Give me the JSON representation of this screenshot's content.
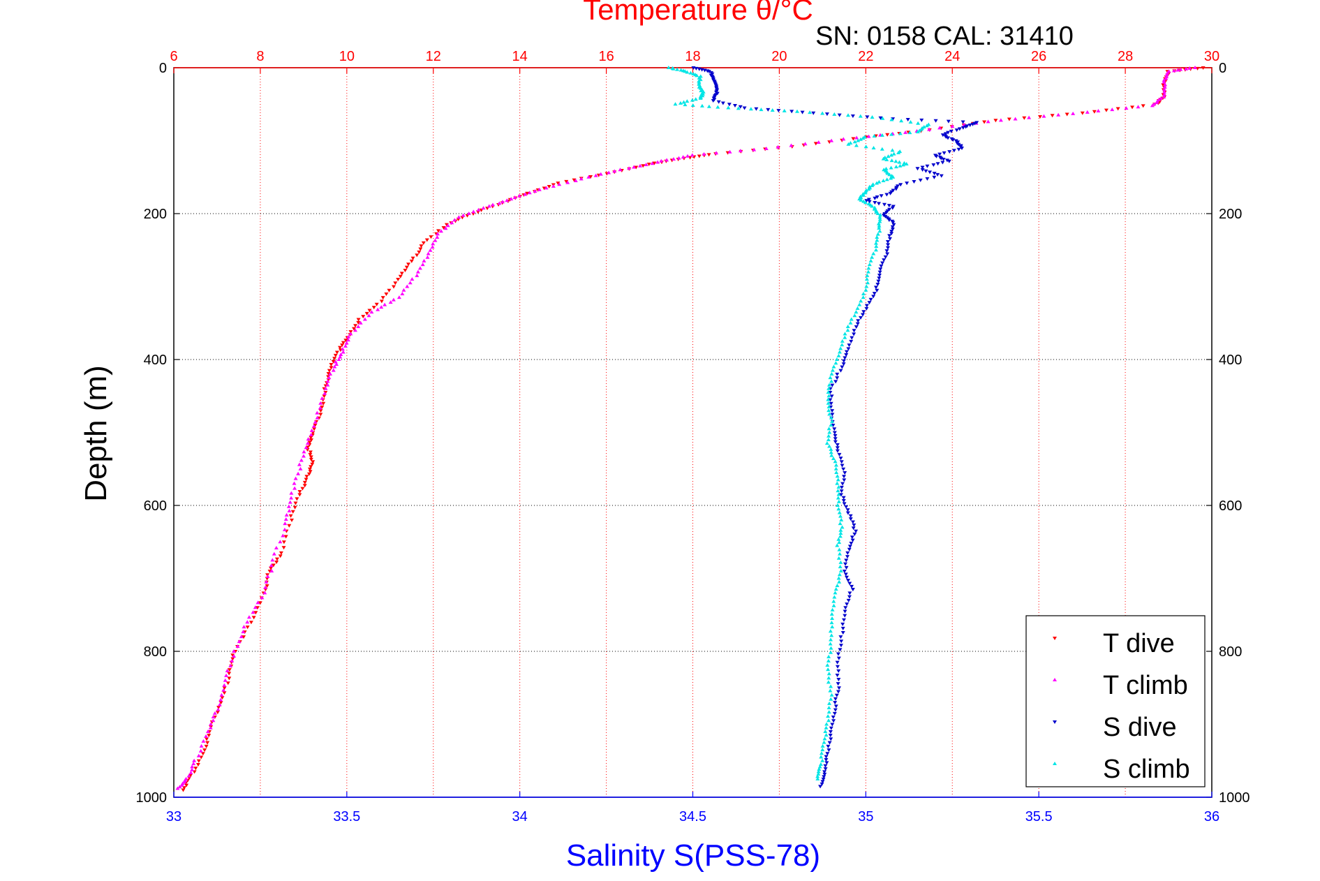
{
  "chart_data": {
    "type": "scatter",
    "title": "Temperature θ/°C",
    "subtitle": "SN: 0158  CAL: 31410",
    "ylabel": "Depth (m)",
    "xlabel_bottom": "Salinity S(PSS-78)",
    "xlabel_top": "Temperature θ/°C",
    "y_ticks": [
      "0",
      "200",
      "400",
      "600",
      "800",
      "1000"
    ],
    "y_range": [
      0,
      1000
    ],
    "y_reversed": true,
    "x_top_ticks": [
      "6",
      "8",
      "10",
      "12",
      "14",
      "16",
      "18",
      "20",
      "22",
      "24",
      "26",
      "28",
      "30"
    ],
    "x_top_range": [
      6,
      30
    ],
    "x_bottom_ticks": [
      "33",
      "33.5",
      "34",
      "34.5",
      "35",
      "35.5",
      "36"
    ],
    "x_bottom_range": [
      33,
      36
    ],
    "grid": true,
    "legend_position": "bottom-right",
    "colors": {
      "t_dive": "#ff0000",
      "t_climb": "#ff00ff",
      "s_dive": "#0000cc",
      "s_climb": "#00e5e5",
      "top_axis": "#ff0000",
      "bottom_axis": "#0000ff"
    },
    "series": [
      {
        "name": "T dive",
        "axis": "top",
        "marker": "triangle-down",
        "points": [
          [
            29.8,
            0
          ],
          [
            29.0,
            5
          ],
          [
            28.9,
            20
          ],
          [
            28.9,
            40
          ],
          [
            28.7,
            50
          ],
          [
            27.0,
            62
          ],
          [
            25.0,
            72
          ],
          [
            23.5,
            85
          ],
          [
            22.0,
            95
          ],
          [
            20.3,
            108
          ],
          [
            18.5,
            118
          ],
          [
            17.8,
            124
          ],
          [
            17.0,
            132
          ],
          [
            16.0,
            145
          ],
          [
            14.9,
            158
          ],
          [
            14.2,
            172
          ],
          [
            13.6,
            185
          ],
          [
            12.9,
            200
          ],
          [
            12.3,
            215
          ],
          [
            11.8,
            240
          ],
          [
            11.5,
            265
          ],
          [
            11.2,
            290
          ],
          [
            10.8,
            320
          ],
          [
            10.3,
            345
          ],
          [
            10.0,
            370
          ],
          [
            9.8,
            390
          ],
          [
            9.6,
            415
          ],
          [
            9.5,
            440
          ],
          [
            9.4,
            470
          ],
          [
            9.2,
            500
          ],
          [
            9.1,
            520
          ],
          [
            9.2,
            540
          ],
          [
            9.1,
            560
          ],
          [
            8.9,
            585
          ],
          [
            8.7,
            620
          ],
          [
            8.5,
            665
          ],
          [
            8.2,
            690
          ],
          [
            8.1,
            720
          ],
          [
            7.8,
            760
          ],
          [
            7.4,
            800
          ],
          [
            7.3,
            830
          ],
          [
            7.1,
            870
          ],
          [
            6.8,
            910
          ],
          [
            6.7,
            940
          ],
          [
            6.4,
            970
          ],
          [
            6.2,
            990
          ]
        ]
      },
      {
        "name": "T climb",
        "axis": "top",
        "marker": "triangle-up",
        "points": [
          [
            29.6,
            0
          ],
          [
            29.0,
            5
          ],
          [
            28.9,
            20
          ],
          [
            28.9,
            40
          ],
          [
            28.6,
            52
          ],
          [
            26.8,
            63
          ],
          [
            24.8,
            74
          ],
          [
            23.2,
            87
          ],
          [
            21.5,
            98
          ],
          [
            19.7,
            111
          ],
          [
            18.0,
            120
          ],
          [
            17.3,
            128
          ],
          [
            16.5,
            138
          ],
          [
            15.6,
            150
          ],
          [
            14.6,
            165
          ],
          [
            13.9,
            178
          ],
          [
            13.3,
            190
          ],
          [
            12.6,
            205
          ],
          [
            12.1,
            228
          ],
          [
            11.9,
            255
          ],
          [
            11.6,
            285
          ],
          [
            11.2,
            315
          ],
          [
            10.6,
            335
          ],
          [
            10.1,
            365
          ],
          [
            9.9,
            390
          ],
          [
            9.7,
            410
          ],
          [
            9.5,
            440
          ],
          [
            9.3,
            480
          ],
          [
            9.1,
            515
          ],
          [
            8.9,
            550
          ],
          [
            8.7,
            590
          ],
          [
            8.6,
            625
          ],
          [
            8.3,
            675
          ],
          [
            8.1,
            720
          ],
          [
            7.7,
            760
          ],
          [
            7.4,
            800
          ],
          [
            7.2,
            840
          ],
          [
            7.0,
            880
          ],
          [
            6.8,
            910
          ],
          [
            6.5,
            950
          ],
          [
            6.3,
            975
          ],
          [
            6.1,
            988
          ]
        ]
      },
      {
        "name": "S dive",
        "axis": "bottom",
        "marker": "triangle-down",
        "points": [
          [
            34.5,
            0
          ],
          [
            34.55,
            5
          ],
          [
            34.56,
            15
          ],
          [
            34.57,
            25
          ],
          [
            34.57,
            35
          ],
          [
            34.56,
            45
          ],
          [
            34.65,
            55
          ],
          [
            34.85,
            62
          ],
          [
            35.08,
            70
          ],
          [
            35.32,
            75
          ],
          [
            35.28,
            82
          ],
          [
            35.22,
            92
          ],
          [
            35.26,
            100
          ],
          [
            35.28,
            110
          ],
          [
            35.2,
            120
          ],
          [
            35.24,
            128
          ],
          [
            35.15,
            138
          ],
          [
            35.22,
            148
          ],
          [
            35.1,
            160
          ],
          [
            35.07,
            172
          ],
          [
            35.0,
            182
          ],
          [
            35.08,
            190
          ],
          [
            35.05,
            202
          ],
          [
            35.08,
            212
          ],
          [
            35.07,
            230
          ],
          [
            35.06,
            255
          ],
          [
            35.04,
            280
          ],
          [
            35.03,
            305
          ],
          [
            35.0,
            330
          ],
          [
            34.97,
            355
          ],
          [
            34.95,
            385
          ],
          [
            34.93,
            410
          ],
          [
            34.9,
            440
          ],
          [
            34.9,
            470
          ],
          [
            34.91,
            500
          ],
          [
            34.92,
            525
          ],
          [
            34.94,
            555
          ],
          [
            34.93,
            585
          ],
          [
            34.95,
            610
          ],
          [
            34.97,
            635
          ],
          [
            34.95,
            660
          ],
          [
            34.94,
            690
          ],
          [
            34.96,
            715
          ],
          [
            34.94,
            745
          ],
          [
            34.93,
            780
          ],
          [
            34.92,
            815
          ],
          [
            34.92,
            850
          ],
          [
            34.91,
            880
          ],
          [
            34.9,
            910
          ],
          [
            34.89,
            940
          ],
          [
            34.88,
            965
          ],
          [
            34.87,
            985
          ]
        ]
      },
      {
        "name": "S climb",
        "axis": "bottom",
        "marker": "triangle-up",
        "points": [
          [
            34.43,
            0
          ],
          [
            34.48,
            5
          ],
          [
            34.52,
            12
          ],
          [
            34.52,
            25
          ],
          [
            34.53,
            35
          ],
          [
            34.52,
            42
          ],
          [
            34.45,
            50
          ],
          [
            34.6,
            55
          ],
          [
            34.8,
            60
          ],
          [
            35.02,
            68
          ],
          [
            35.18,
            78
          ],
          [
            35.15,
            88
          ],
          [
            35.0,
            95
          ],
          [
            34.95,
            105
          ],
          [
            35.1,
            115
          ],
          [
            35.05,
            125
          ],
          [
            35.12,
            132
          ],
          [
            35.05,
            140
          ],
          [
            35.08,
            150
          ],
          [
            35.02,
            160
          ],
          [
            35.0,
            170
          ],
          [
            34.98,
            180
          ],
          [
            35.02,
            190
          ],
          [
            35.04,
            202
          ],
          [
            35.04,
            220
          ],
          [
            35.03,
            245
          ],
          [
            35.01,
            275
          ],
          [
            35.0,
            305
          ],
          [
            34.97,
            335
          ],
          [
            34.94,
            365
          ],
          [
            34.92,
            395
          ],
          [
            34.9,
            425
          ],
          [
            34.89,
            455
          ],
          [
            34.9,
            485
          ],
          [
            34.89,
            515
          ],
          [
            34.91,
            540
          ],
          [
            34.92,
            570
          ],
          [
            34.92,
            600
          ],
          [
            34.93,
            630
          ],
          [
            34.92,
            655
          ],
          [
            34.93,
            690
          ],
          [
            34.91,
            720
          ],
          [
            34.9,
            755
          ],
          [
            34.9,
            790
          ],
          [
            34.89,
            825
          ],
          [
            34.9,
            860
          ],
          [
            34.89,
            895
          ],
          [
            34.88,
            925
          ],
          [
            34.87,
            955
          ],
          [
            34.86,
            975
          ]
        ]
      }
    ]
  }
}
